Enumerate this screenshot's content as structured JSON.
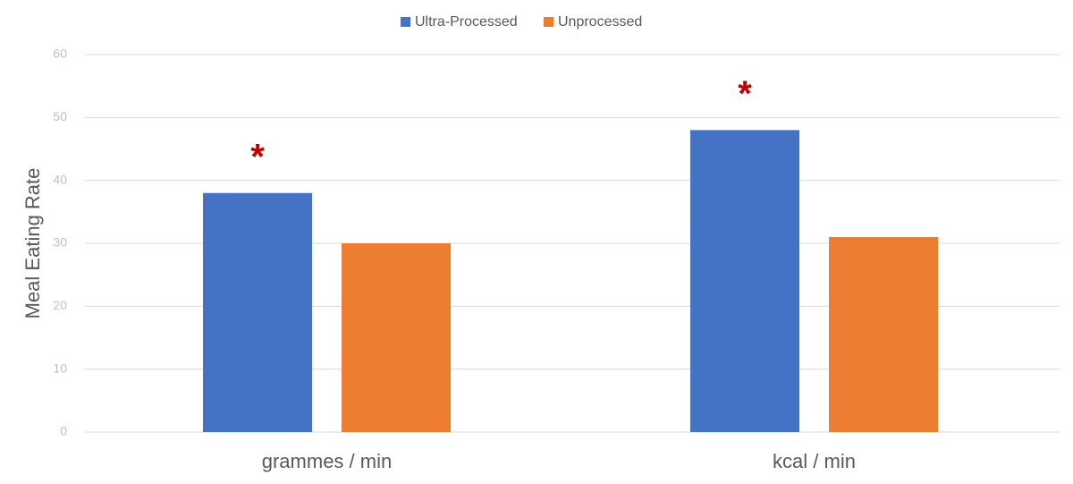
{
  "chart_data": {
    "type": "bar",
    "y_label": "Meal Eating Rate",
    "categories": [
      "grammes / min",
      "kcal / min"
    ],
    "series": [
      {
        "name": "Ultra-Processed",
        "color": "#4472c4",
        "values": [
          38,
          48
        ],
        "annotations": [
          "*",
          "*"
        ]
      },
      {
        "name": "Unprocessed",
        "color": "#ed7d31",
        "values": [
          30,
          31
        ]
      }
    ],
    "ylim": [
      0,
      60
    ],
    "yticks": [
      0,
      10,
      20,
      30,
      40,
      50,
      60
    ],
    "grid": true,
    "legend": "top"
  }
}
